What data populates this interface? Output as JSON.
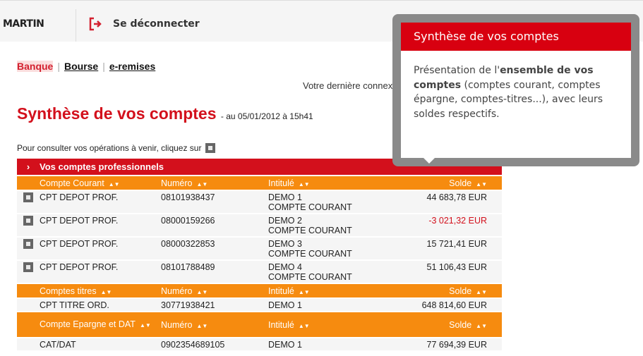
{
  "header": {
    "user": "MARTIN",
    "logout": "Se déconnecter"
  },
  "nav": [
    {
      "label": "Banque",
      "active": true
    },
    {
      "label": "Bourse"
    },
    {
      "label": "e-remises"
    }
  ],
  "last_connection": "Votre dernière connexion",
  "page": {
    "title": "Synthèse de vos comptes",
    "subtitle": "- au 05/01/2012 à 15h41",
    "hint": "Pour consulter vos opérations à venir, cliquez sur"
  },
  "section": {
    "title": "Vos comptes professionnels"
  },
  "groups": [
    {
      "headers": [
        "Compte Courant",
        "Numéro",
        "Intitulé",
        "Solde"
      ],
      "rows": [
        {
          "type": "CPT DEPOT PROF.",
          "num": "08101938437",
          "label1": "DEMO 1",
          "label2": "COMPTE COURANT",
          "solde": "44 683,78 EUR"
        },
        {
          "type": "CPT DEPOT PROF.",
          "num": "08000159266",
          "label1": "DEMO 2",
          "label2": "COMPTE COURANT",
          "solde": "-3 021,32 EUR"
        },
        {
          "type": "CPT DEPOT PROF.",
          "num": "08000322853",
          "label1": "DEMO 3",
          "label2": "COMPTE COURANT",
          "solde": "15 721,41 EUR"
        },
        {
          "type": "CPT DEPOT PROF.",
          "num": "08101788489",
          "label1": "DEMO 4",
          "label2": "COMPTE COURANT",
          "solde": "51 106,43 EUR"
        }
      ]
    },
    {
      "headers": [
        "Comptes titres",
        "Numéro",
        "Intitulé",
        "Solde"
      ],
      "rows": [
        {
          "type": "CPT TITRE ORD.",
          "num": "30771938421",
          "label1": "DEMO 1",
          "solde": "648 814,60 EUR"
        }
      ]
    },
    {
      "headers": [
        "Compte Epargne et DAT",
        "Numéro",
        "Intitulé",
        "Solde"
      ],
      "rows": [
        {
          "type": "CAT/DAT",
          "num": "0902354689105",
          "label1": "DEMO 1",
          "solde": "77 694,39 EUR"
        }
      ]
    }
  ],
  "tooltip": {
    "title": "Synthèse de vos comptes",
    "t1": "Présentation de l'",
    "b1": "ensemble de vos comptes",
    "t2": " (comptes courant, comptes épargne, comptes-titres...), avec leurs soldes respectifs."
  },
  "colors": {
    "red": "#d3101c",
    "orange": "#f68b0f",
    "negative": "#d3101c"
  }
}
